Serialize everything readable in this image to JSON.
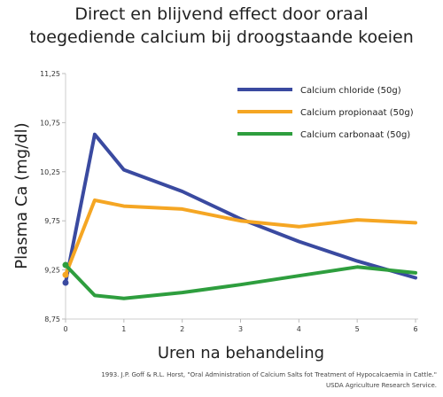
{
  "chart_data": {
    "type": "line",
    "title_lines": [
      "Direct en blijvend effect door oraal",
      "toegediende calcium bij droogstaande koeien"
    ],
    "xlabel": "Uren na behandeling",
    "ylabel": "Plasma Ca (mg/dl)",
    "x_ticks": [
      "0",
      "1",
      "2",
      "3",
      "4",
      "5",
      "6"
    ],
    "y_ticks": [
      "8,75",
      "9,25",
      "9,75",
      "10,25",
      "10,75",
      "11,25"
    ],
    "xlim": [
      0,
      6
    ],
    "ylim": [
      8.75,
      11.25
    ],
    "legend_position": "top-right",
    "series": [
      {
        "name": "Calcium chloride (50g)",
        "color": "#3a4aa0",
        "x": [
          0,
          0.5,
          1,
          2,
          3,
          4,
          5,
          6
        ],
        "y": [
          9.12,
          10.63,
          10.27,
          10.05,
          9.77,
          9.54,
          9.34,
          9.17
        ]
      },
      {
        "name": "Calcium propionaat (50g)",
        "color": "#f5a623",
        "x": [
          0,
          0.5,
          1,
          2,
          3,
          4,
          5,
          6
        ],
        "y": [
          9.2,
          9.96,
          9.9,
          9.87,
          9.75,
          9.69,
          9.76,
          9.73
        ]
      },
      {
        "name": "Calcium carbonaat (50g)",
        "color": "#2e9e3e",
        "x": [
          0,
          0.5,
          1,
          2,
          3,
          4,
          5,
          6
        ],
        "y": [
          9.3,
          8.99,
          8.96,
          9.02,
          9.1,
          9.19,
          9.28,
          9.22
        ]
      }
    ],
    "source_lines": [
      "1993. J.P. Goff & R.L. Horst, \"Oral Administration of Calcium Salts fot Treatment of Hypocalcaemia in Cattle.\"",
      "USDA Agriculture Research Service."
    ]
  }
}
